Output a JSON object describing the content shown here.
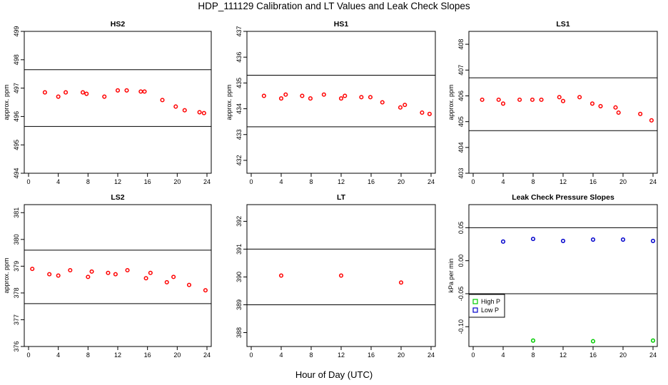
{
  "title": "HDP_111129  Calibration and LT Values and Leak Check Slopes",
  "x_axis_title": "Hour of Day (UTC)",
  "colors": {
    "points": "#ff0000",
    "high_p": "#00cc00",
    "low_p": "#0000cc",
    "axis": "#000000"
  },
  "chart_data": [
    {
      "type": "scatter",
      "title": "HS2",
      "ylabel": "approx. ppm",
      "xlim": [
        0,
        24
      ],
      "ylim": [
        494,
        499
      ],
      "yticks": [
        494,
        495,
        496,
        497,
        498,
        499
      ],
      "xticks": [
        0,
        4,
        8,
        12,
        16,
        20,
        24
      ],
      "hlines": [
        497.65,
        495.65
      ],
      "series": [
        {
          "color": "#ff0000",
          "x": [
            2.2,
            4.0,
            5.0,
            7.3,
            7.8,
            10.2,
            12.0,
            13.2,
            15.1,
            15.6,
            18.0,
            19.8,
            21.0,
            23.0,
            23.6
          ],
          "y": [
            496.85,
            496.7,
            496.85,
            496.85,
            496.8,
            496.7,
            496.92,
            496.92,
            496.88,
            496.88,
            496.58,
            496.35,
            496.22,
            496.15,
            496.12
          ]
        }
      ]
    },
    {
      "type": "scatter",
      "title": "HS1",
      "ylabel": "approx. ppm",
      "xlim": [
        0,
        24
      ],
      "ylim": [
        431.5,
        437
      ],
      "yticks": [
        432,
        433,
        434,
        435,
        436,
        437
      ],
      "xticks": [
        0,
        4,
        8,
        12,
        16,
        20,
        24
      ],
      "hlines": [
        435.3,
        433.3
      ],
      "series": [
        {
          "color": "#ff0000",
          "x": [
            1.7,
            4.0,
            4.6,
            6.8,
            7.9,
            9.7,
            12.0,
            12.5,
            14.7,
            15.9,
            17.5,
            19.9,
            20.5,
            22.8,
            23.8
          ],
          "y": [
            434.5,
            434.4,
            434.55,
            434.5,
            434.4,
            434.55,
            434.4,
            434.5,
            434.45,
            434.45,
            434.25,
            434.05,
            434.15,
            433.85,
            433.8
          ]
        }
      ]
    },
    {
      "type": "scatter",
      "title": "LS1",
      "ylabel": "approx. ppm",
      "xlim": [
        0,
        24
      ],
      "ylim": [
        403,
        408.5
      ],
      "yticks": [
        403,
        404,
        405,
        406,
        407,
        408
      ],
      "xticks": [
        0,
        4,
        8,
        12,
        16,
        20,
        24
      ],
      "hlines": [
        406.7,
        404.65
      ],
      "series": [
        {
          "color": "#ff0000",
          "x": [
            1.2,
            3.4,
            4.0,
            6.2,
            7.9,
            9.1,
            11.5,
            12.0,
            14.2,
            15.9,
            17.0,
            19.0,
            19.4,
            22.3,
            23.8
          ],
          "y": [
            405.85,
            405.85,
            405.7,
            405.85,
            405.85,
            405.85,
            405.95,
            405.8,
            405.95,
            405.7,
            405.6,
            405.55,
            405.35,
            405.3,
            405.05
          ]
        }
      ]
    },
    {
      "type": "scatter",
      "title": "LS2",
      "ylabel": "approx. ppm",
      "xlim": [
        0,
        24
      ],
      "ylim": [
        376,
        381.3
      ],
      "yticks": [
        376,
        377,
        378,
        379,
        380,
        381
      ],
      "xticks": [
        0,
        4,
        8,
        12,
        16,
        20,
        24
      ],
      "hlines": [
        379.6,
        377.6
      ],
      "series": [
        {
          "color": "#ff0000",
          "x": [
            0.5,
            2.8,
            4.0,
            5.6,
            8.0,
            8.5,
            10.7,
            11.7,
            13.3,
            15.8,
            16.4,
            18.6,
            19.5,
            21.6,
            23.8
          ],
          "y": [
            378.9,
            378.7,
            378.65,
            378.85,
            378.6,
            378.8,
            378.75,
            378.7,
            378.85,
            378.55,
            378.75,
            378.4,
            378.6,
            378.3,
            378.1
          ]
        }
      ]
    },
    {
      "type": "scatter",
      "title": "LT",
      "ylabel": "",
      "xlim": [
        0,
        24
      ],
      "ylim": [
        387.5,
        392.6
      ],
      "yticks": [
        388,
        389,
        390,
        391,
        392
      ],
      "xticks": [
        0,
        4,
        8,
        12,
        16,
        20,
        24
      ],
      "hlines": [
        391.0,
        389.0
      ],
      "series": [
        {
          "color": "#ff0000",
          "x": [
            4.0,
            12.0,
            20.0
          ],
          "y": [
            390.05,
            390.05,
            389.8
          ]
        }
      ]
    },
    {
      "type": "scatter",
      "title": "Leak Check Pressure Slopes",
      "ylabel": "kPa per min",
      "xlim": [
        0,
        24
      ],
      "ylim": [
        -0.13,
        0.085
      ],
      "yticks": [
        -0.1,
        -0.05,
        0.0,
        0.05
      ],
      "ytick_labels": [
        "-0.10",
        "-0.05",
        "0.00",
        "0.05"
      ],
      "xticks": [
        0,
        4,
        8,
        12,
        16,
        20,
        24
      ],
      "hlines": [
        0.05,
        -0.05
      ],
      "legend": {
        "position": "left",
        "entries": [
          "High P",
          "Low P"
        ]
      },
      "series": [
        {
          "name": "High P",
          "color": "#00cc00",
          "x": [
            8.0,
            16.0,
            24.0
          ],
          "y": [
            -0.121,
            -0.122,
            -0.121
          ]
        },
        {
          "name": "Low P",
          "color": "#0000cc",
          "x": [
            4.0,
            8.0,
            12.0,
            16.0,
            20.0,
            24.0
          ],
          "y": [
            0.029,
            0.033,
            0.03,
            0.032,
            0.032,
            0.03
          ]
        }
      ]
    }
  ]
}
